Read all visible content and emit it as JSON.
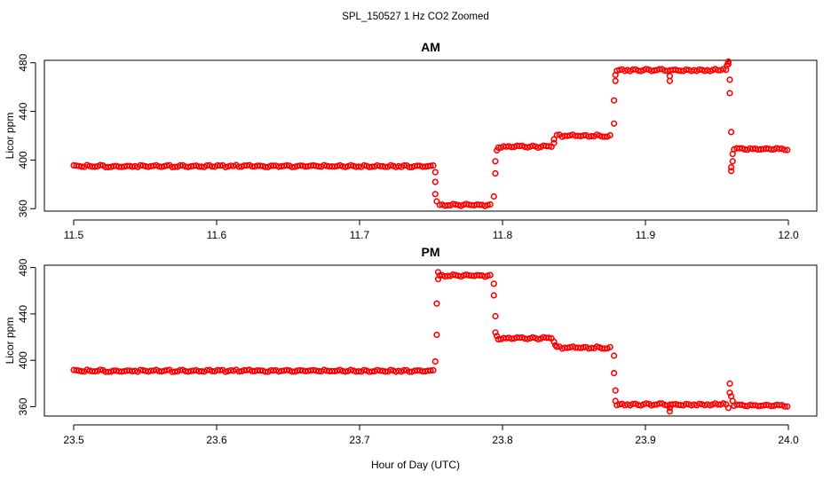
{
  "figure": {
    "title": "SPL_150527  1 Hz CO2 Zoomed",
    "xlabel": "Hour of Day (UTC)",
    "marker_color": "#ff0000"
  },
  "chart_data": [
    {
      "type": "scatter",
      "title": "AM",
      "xlabel": "",
      "ylabel": "Licor ppm",
      "xlim": [
        11.5,
        12.0
      ],
      "ylim": [
        358,
        482
      ],
      "x_ticks": [
        11.5,
        11.6,
        11.7,
        11.8,
        11.9,
        12.0
      ],
      "x_tick_labels": [
        "11.5",
        "11.6",
        "11.7",
        "11.8",
        "11.9",
        "12.0"
      ],
      "y_ticks": [
        360,
        400,
        440,
        480
      ],
      "y_tick_labels": [
        "360",
        "400",
        "440",
        "480"
      ],
      "series": [
        {
          "marker": "open-circle",
          "color": "#ff0000",
          "segments": [
            {
              "x": [
                11.5,
                11.753
              ],
              "y": 395
            },
            {
              "x": [
                11.756,
                11.793
              ],
              "y": 363
            },
            {
              "x": [
                11.797,
                11.835
              ],
              "y": 411
            },
            {
              "x": [
                11.838,
                11.877
              ],
              "y": 420
            },
            {
              "x": [
                11.88,
                11.958
              ],
              "y": 474
            },
            {
              "x": [
                11.962,
                12.0
              ],
              "y": 409
            }
          ],
          "points": [
            {
              "x": 11.753,
              "y": 390
            },
            {
              "x": 11.753,
              "y": 382
            },
            {
              "x": 11.753,
              "y": 372
            },
            {
              "x": 11.754,
              "y": 366
            },
            {
              "x": 11.794,
              "y": 370
            },
            {
              "x": 11.795,
              "y": 389
            },
            {
              "x": 11.795,
              "y": 399
            },
            {
              "x": 11.796,
              "y": 408
            },
            {
              "x": 11.836,
              "y": 414
            },
            {
              "x": 11.836,
              "y": 417
            },
            {
              "x": 11.878,
              "y": 430
            },
            {
              "x": 11.878,
              "y": 449
            },
            {
              "x": 11.879,
              "y": 465
            },
            {
              "x": 11.879,
              "y": 470
            },
            {
              "x": 11.917,
              "y": 465
            },
            {
              "x": 11.917,
              "y": 469
            },
            {
              "x": 11.957,
              "y": 478
            },
            {
              "x": 11.958,
              "y": 481
            },
            {
              "x": 11.958,
              "y": 479
            },
            {
              "x": 11.959,
              "y": 466
            },
            {
              "x": 11.959,
              "y": 455
            },
            {
              "x": 11.96,
              "y": 423
            },
            {
              "x": 11.96,
              "y": 391
            },
            {
              "x": 11.96,
              "y": 394
            },
            {
              "x": 11.961,
              "y": 399
            },
            {
              "x": 11.961,
              "y": 405
            }
          ]
        }
      ]
    },
    {
      "type": "scatter",
      "title": "PM",
      "xlabel": "",
      "ylabel": "Licor ppm",
      "xlim": [
        23.5,
        24.0
      ],
      "ylim": [
        352,
        482
      ],
      "x_ticks": [
        23.5,
        23.6,
        23.7,
        23.8,
        23.9,
        24.0
      ],
      "x_tick_labels": [
        "23.5",
        "23.6",
        "23.7",
        "23.8",
        "23.9",
        "24.0"
      ],
      "y_ticks": [
        360,
        400,
        440,
        480
      ],
      "y_tick_labels": [
        "360",
        "400",
        "440",
        "480"
      ],
      "series": [
        {
          "marker": "open-circle",
          "color": "#ff0000",
          "segments": [
            {
              "x": [
                23.5,
                23.753
              ],
              "y": 391
            },
            {
              "x": [
                23.756,
                23.793
              ],
              "y": 473
            },
            {
              "x": [
                23.797,
                23.835
              ],
              "y": 419
            },
            {
              "x": [
                23.838,
                23.877
              ],
              "y": 411
            },
            {
              "x": [
                23.88,
                23.958
              ],
              "y": 362
            },
            {
              "x": [
                23.962,
                24.0
              ],
              "y": 361
            }
          ],
          "points": [
            {
              "x": 23.753,
              "y": 399
            },
            {
              "x": 23.754,
              "y": 422
            },
            {
              "x": 23.754,
              "y": 449
            },
            {
              "x": 23.755,
              "y": 470
            },
            {
              "x": 23.755,
              "y": 476
            },
            {
              "x": 23.794,
              "y": 466
            },
            {
              "x": 23.794,
              "y": 456
            },
            {
              "x": 23.795,
              "y": 438
            },
            {
              "x": 23.795,
              "y": 424
            },
            {
              "x": 23.796,
              "y": 421
            },
            {
              "x": 23.836,
              "y": 416
            },
            {
              "x": 23.837,
              "y": 413
            },
            {
              "x": 23.878,
              "y": 404
            },
            {
              "x": 23.878,
              "y": 389
            },
            {
              "x": 23.879,
              "y": 374
            },
            {
              "x": 23.879,
              "y": 365
            },
            {
              "x": 23.917,
              "y": 356
            },
            {
              "x": 23.917,
              "y": 359
            },
            {
              "x": 23.959,
              "y": 380
            },
            {
              "x": 23.959,
              "y": 372
            },
            {
              "x": 23.96,
              "y": 369
            },
            {
              "x": 23.958,
              "y": 359
            },
            {
              "x": 23.961,
              "y": 365
            }
          ]
        }
      ]
    }
  ]
}
